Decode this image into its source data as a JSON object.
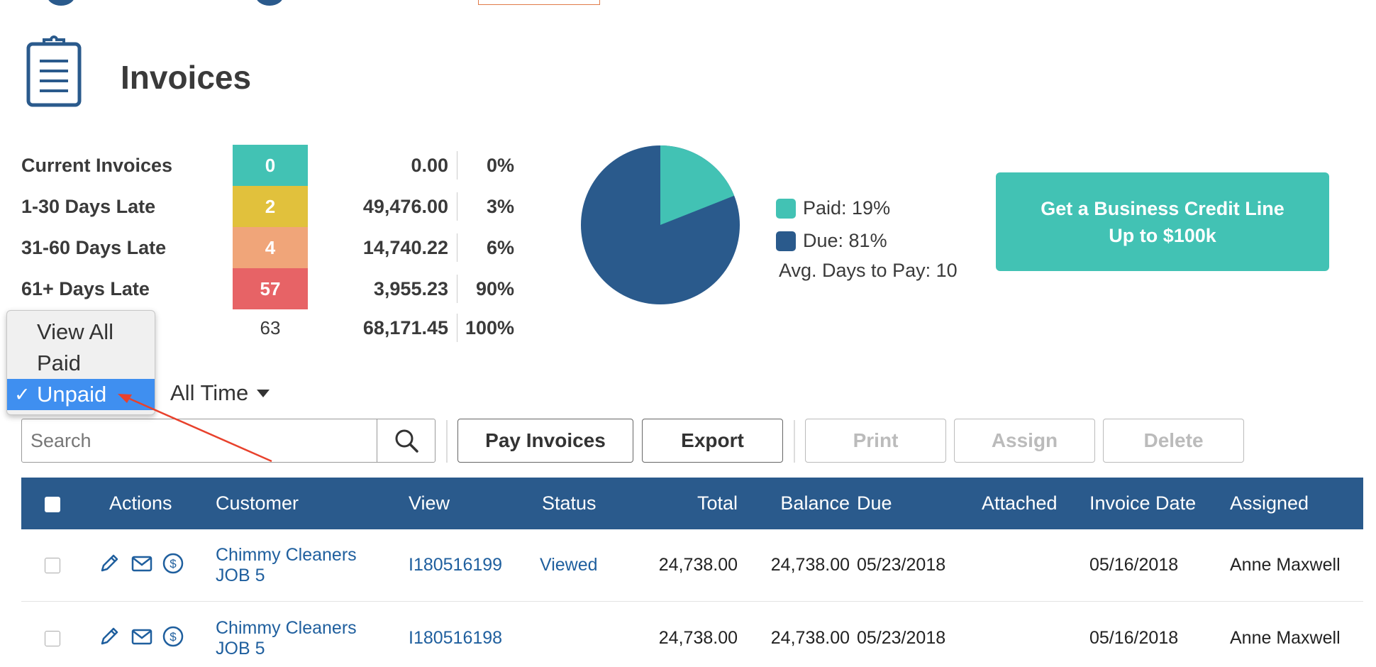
{
  "page": {
    "title": "Invoices"
  },
  "aging": [
    {
      "label": "Current Invoices",
      "count": "0",
      "amount": "0.00",
      "percent": "0%",
      "color": "#42c2b4"
    },
    {
      "label": "1-30 Days Late",
      "count": "2",
      "amount": "49,476.00",
      "percent": "3%",
      "color": "#e1c13c"
    },
    {
      "label": "31-60 Days Late",
      "count": "4",
      "amount": "14,740.22",
      "percent": "6%",
      "color": "#f0a579"
    },
    {
      "label": "61+ Days Late",
      "count": "57",
      "amount": "3,955.23",
      "percent": "90%",
      "color": "#e76366"
    }
  ],
  "aging_total": {
    "count": "63",
    "amount": "68,171.45",
    "percent": "100%"
  },
  "payment_summary": {
    "paid_label": "Paid: 19%",
    "due_label": "Due: 81%",
    "paid_fraction": 0.19,
    "avg_days_label": "Avg. Days to Pay: 10",
    "paid_color": "#42c2b4",
    "due_color": "#2a5a8c"
  },
  "credit_offer": {
    "line1": "Get a Business Credit Line",
    "line2": "Up to $100k"
  },
  "status_filter": {
    "options": [
      "View All",
      "Paid",
      "Unpaid"
    ],
    "selected": "Unpaid",
    "check": "✓"
  },
  "time_filter": {
    "selected": "All Time"
  },
  "search": {
    "placeholder": "Search"
  },
  "toolbar": {
    "pay_invoices": "Pay Invoices",
    "export": "Export",
    "print": "Print",
    "assign": "Assign",
    "delete": "Delete"
  },
  "table": {
    "headers": {
      "actions": "Actions",
      "customer": "Customer",
      "view": "View",
      "status": "Status",
      "total": "Total",
      "balance": "Balance",
      "due": "Due",
      "attached": "Attached",
      "invoice_date": "Invoice Date",
      "assigned": "Assigned"
    },
    "rows": [
      {
        "customer_line1": "Chimmy Cleaners",
        "customer_line2": "JOB 5",
        "view": "I180516199",
        "status": "Viewed",
        "total": "24,738.00",
        "balance": "24,738.00",
        "due": "05/23/2018",
        "attached": "",
        "invoice_date": "05/16/2018",
        "assigned": "Anne Maxwell"
      },
      {
        "customer_line1": "Chimmy Cleaners",
        "customer_line2": "JOB 5",
        "view": "I180516198",
        "status": "",
        "total": "24,738.00",
        "balance": "24,738.00",
        "due": "05/23/2018",
        "attached": "",
        "invoice_date": "05/16/2018",
        "assigned": "Anne Maxwell"
      }
    ]
  },
  "icons": {
    "page": "clipboard-icon",
    "search": "search-icon",
    "edit": "pencil-icon",
    "email": "envelope-icon",
    "payment": "dollar-circle-icon"
  },
  "colors": {
    "brand": "#2a5a8c",
    "accent": "#42c2b4",
    "link": "#1f5f9e",
    "annotation": "#e8412c"
  }
}
